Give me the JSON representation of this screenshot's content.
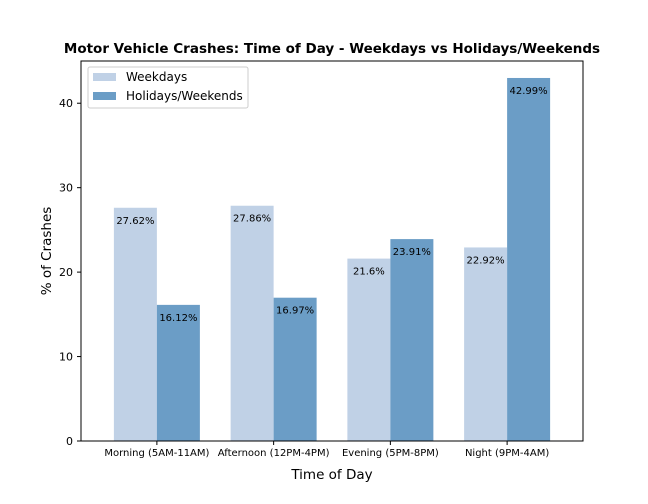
{
  "chart_data": {
    "type": "bar",
    "title": "Motor Vehicle Crashes: Time of Day - Weekdays vs Holidays/Weekends",
    "xlabel": "Time of Day",
    "ylabel": "% of Crashes",
    "categories": [
      "Morning (5AM-11AM)",
      "Afternoon (12PM-4PM)",
      "Evening (5PM-8PM)",
      "Night (9PM-4AM)"
    ],
    "series": [
      {
        "name": "Weekdays",
        "values": [
          27.62,
          27.86,
          21.6,
          22.92
        ],
        "labels": [
          "27.62%",
          "27.86%",
          "21.6%",
          "22.92%"
        ],
        "color": "#c0d1e6"
      },
      {
        "name": "Holidays/Weekends",
        "values": [
          16.12,
          16.97,
          23.91,
          42.99
        ],
        "labels": [
          "16.12%",
          "16.97%",
          "23.91%",
          "42.99%"
        ],
        "color": "#6b9dc6"
      }
    ],
    "ylim": [
      0,
      45
    ],
    "yticks": [
      0,
      10,
      20,
      30,
      40
    ],
    "legend": "top-left",
    "grid": false
  }
}
